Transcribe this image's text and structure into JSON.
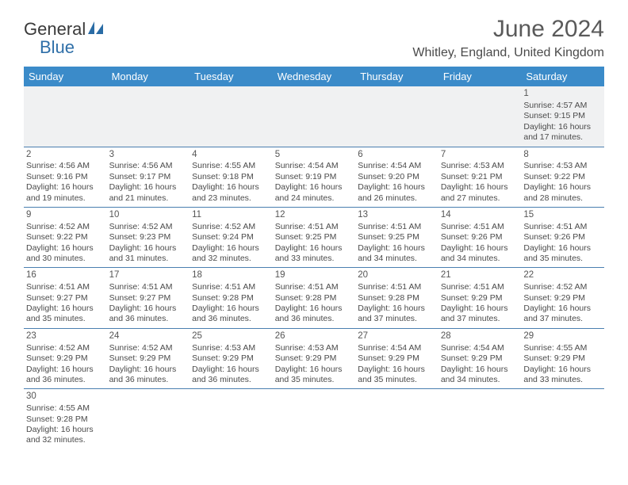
{
  "logo": {
    "text1": "General",
    "text2": "Blue",
    "sail_color": "#2a6ca5"
  },
  "title": "June 2024",
  "location": "Whitley, England, United Kingdom",
  "header_bg": "#3b8bc9",
  "header_fg": "#ffffff",
  "grid_border": "#4a7fb0",
  "row0_bg": "#f0f1f2",
  "dayHeaders": [
    "Sunday",
    "Monday",
    "Tuesday",
    "Wednesday",
    "Thursday",
    "Friday",
    "Saturday"
  ],
  "weeks": [
    [
      null,
      null,
      null,
      null,
      null,
      null,
      {
        "d": "1",
        "sr": "4:57 AM",
        "ss": "9:15 PM",
        "dh": "16",
        "dm": "17"
      }
    ],
    [
      {
        "d": "2",
        "sr": "4:56 AM",
        "ss": "9:16 PM",
        "dh": "16",
        "dm": "19"
      },
      {
        "d": "3",
        "sr": "4:56 AM",
        "ss": "9:17 PM",
        "dh": "16",
        "dm": "21"
      },
      {
        "d": "4",
        "sr": "4:55 AM",
        "ss": "9:18 PM",
        "dh": "16",
        "dm": "23"
      },
      {
        "d": "5",
        "sr": "4:54 AM",
        "ss": "9:19 PM",
        "dh": "16",
        "dm": "24"
      },
      {
        "d": "6",
        "sr": "4:54 AM",
        "ss": "9:20 PM",
        "dh": "16",
        "dm": "26"
      },
      {
        "d": "7",
        "sr": "4:53 AM",
        "ss": "9:21 PM",
        "dh": "16",
        "dm": "27"
      },
      {
        "d": "8",
        "sr": "4:53 AM",
        "ss": "9:22 PM",
        "dh": "16",
        "dm": "28"
      }
    ],
    [
      {
        "d": "9",
        "sr": "4:52 AM",
        "ss": "9:22 PM",
        "dh": "16",
        "dm": "30"
      },
      {
        "d": "10",
        "sr": "4:52 AM",
        "ss": "9:23 PM",
        "dh": "16",
        "dm": "31"
      },
      {
        "d": "11",
        "sr": "4:52 AM",
        "ss": "9:24 PM",
        "dh": "16",
        "dm": "32"
      },
      {
        "d": "12",
        "sr": "4:51 AM",
        "ss": "9:25 PM",
        "dh": "16",
        "dm": "33"
      },
      {
        "d": "13",
        "sr": "4:51 AM",
        "ss": "9:25 PM",
        "dh": "16",
        "dm": "34"
      },
      {
        "d": "14",
        "sr": "4:51 AM",
        "ss": "9:26 PM",
        "dh": "16",
        "dm": "34"
      },
      {
        "d": "15",
        "sr": "4:51 AM",
        "ss": "9:26 PM",
        "dh": "16",
        "dm": "35"
      }
    ],
    [
      {
        "d": "16",
        "sr": "4:51 AM",
        "ss": "9:27 PM",
        "dh": "16",
        "dm": "35"
      },
      {
        "d": "17",
        "sr": "4:51 AM",
        "ss": "9:27 PM",
        "dh": "16",
        "dm": "36"
      },
      {
        "d": "18",
        "sr": "4:51 AM",
        "ss": "9:28 PM",
        "dh": "16",
        "dm": "36"
      },
      {
        "d": "19",
        "sr": "4:51 AM",
        "ss": "9:28 PM",
        "dh": "16",
        "dm": "36"
      },
      {
        "d": "20",
        "sr": "4:51 AM",
        "ss": "9:28 PM",
        "dh": "16",
        "dm": "37"
      },
      {
        "d": "21",
        "sr": "4:51 AM",
        "ss": "9:29 PM",
        "dh": "16",
        "dm": "37"
      },
      {
        "d": "22",
        "sr": "4:52 AM",
        "ss": "9:29 PM",
        "dh": "16",
        "dm": "37"
      }
    ],
    [
      {
        "d": "23",
        "sr": "4:52 AM",
        "ss": "9:29 PM",
        "dh": "16",
        "dm": "36"
      },
      {
        "d": "24",
        "sr": "4:52 AM",
        "ss": "9:29 PM",
        "dh": "16",
        "dm": "36"
      },
      {
        "d": "25",
        "sr": "4:53 AM",
        "ss": "9:29 PM",
        "dh": "16",
        "dm": "36"
      },
      {
        "d": "26",
        "sr": "4:53 AM",
        "ss": "9:29 PM",
        "dh": "16",
        "dm": "35"
      },
      {
        "d": "27",
        "sr": "4:54 AM",
        "ss": "9:29 PM",
        "dh": "16",
        "dm": "35"
      },
      {
        "d": "28",
        "sr": "4:54 AM",
        "ss": "9:29 PM",
        "dh": "16",
        "dm": "34"
      },
      {
        "d": "29",
        "sr": "4:55 AM",
        "ss": "9:29 PM",
        "dh": "16",
        "dm": "33"
      }
    ],
    [
      {
        "d": "30",
        "sr": "4:55 AM",
        "ss": "9:28 PM",
        "dh": "16",
        "dm": "32"
      },
      null,
      null,
      null,
      null,
      null,
      null
    ]
  ],
  "labels": {
    "sunrise": "Sunrise:",
    "sunset": "Sunset:",
    "daylight_pre": "Daylight:",
    "hours_word": "hours",
    "and_word": "and",
    "minutes_word": "minutes."
  }
}
